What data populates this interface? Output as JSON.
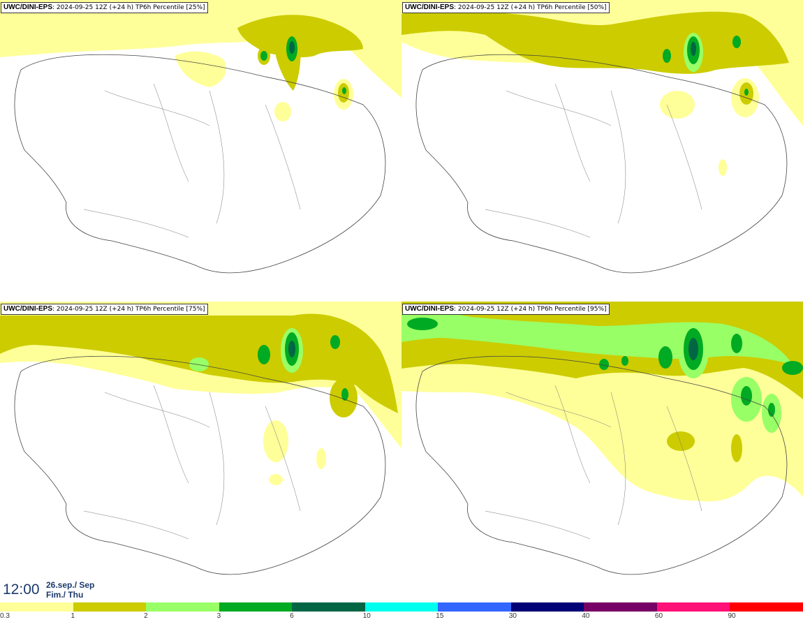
{
  "panels": [
    {
      "model": "UWC/DINI-EPS",
      "sep": ":",
      "run": "2024-09-25 12Z (+24 h)",
      "field": "TP6h Percentile",
      "percentile": "[25%]"
    },
    {
      "model": "UWC/DINI-EPS",
      "sep": ":",
      "run": "2024-09-25 12Z (+24 h)",
      "field": "TP6h Percentile",
      "percentile": "[50%]"
    },
    {
      "model": "UWC/DINI-EPS",
      "sep": ":",
      "run": "2024-09-25 12Z (+24 h)",
      "field": "TP6h Percentile",
      "percentile": "[75%]"
    },
    {
      "model": "UWC/DINI-EPS",
      "sep": ":",
      "run": "2024-09-25 12Z (+24 h)",
      "field": "TP6h Percentile",
      "percentile": "[95%]"
    }
  ],
  "valid": {
    "time": "12:00",
    "date_line": "26.sep./ Sep",
    "day_line": "Fim./ Thu"
  },
  "legend": {
    "ticks": [
      "0.3",
      "1",
      "2",
      "3",
      "6",
      "10",
      "15",
      "30",
      "40",
      "60",
      "90"
    ],
    "colors": [
      "#ffff99",
      "#cccc00",
      "#99ff66",
      "#00aa22",
      "#006644",
      "#00ffee",
      "#3366ff",
      "#000077",
      "#770066",
      "#ff1177",
      "#ff0000"
    ]
  }
}
